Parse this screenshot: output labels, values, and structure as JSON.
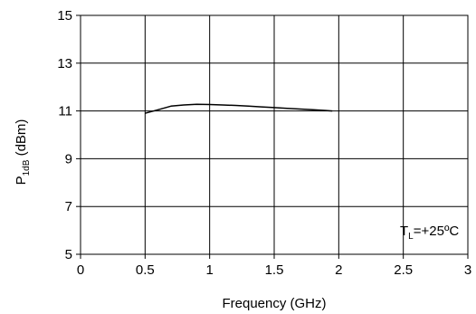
{
  "chart_data": {
    "type": "line",
    "title": "",
    "xlabel": "Frequency (GHz)",
    "ylabel": {
      "main": "P",
      "sub": "1dB",
      "unit": " (dBm)"
    },
    "xlim": [
      0,
      3
    ],
    "ylim": [
      5,
      15
    ],
    "x_ticks": [
      "0",
      "0.5",
      "1",
      "1.5",
      "2",
      "2.5",
      "3"
    ],
    "y_ticks": [
      "5",
      "7",
      "9",
      "11",
      "13",
      "15"
    ],
    "grid": true,
    "annotation": {
      "main": "T",
      "sub": "L",
      "rest": "=+25ºC"
    },
    "series": [
      {
        "color": "#000000",
        "x": [
          0.5,
          0.6,
          0.7,
          0.8,
          0.9,
          1.0,
          1.1,
          1.2,
          1.3,
          1.4,
          1.5,
          1.6,
          1.7,
          1.8,
          1.9,
          1.95
        ],
        "y": [
          10.9,
          11.05,
          11.2,
          11.25,
          11.28,
          11.27,
          11.25,
          11.23,
          11.2,
          11.17,
          11.14,
          11.11,
          11.08,
          11.05,
          11.02,
          11.0
        ]
      }
    ]
  }
}
